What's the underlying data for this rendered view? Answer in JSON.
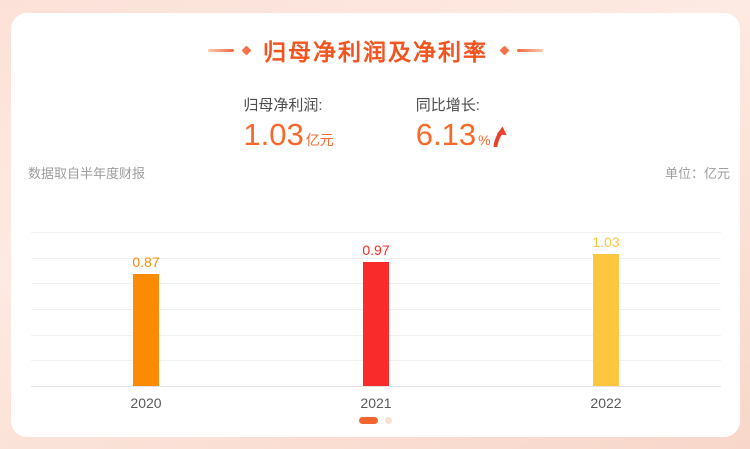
{
  "header": {
    "title": "归母净利润及净利率"
  },
  "stats": {
    "net_profit": {
      "label": "归母净利润:",
      "value": "1.03",
      "unit": "亿元"
    },
    "yoy_growth": {
      "label": "同比增长:",
      "value": "6.13",
      "unit": "%",
      "trend": "up"
    }
  },
  "notes": {
    "source": "数据取自半年度财报",
    "unit": "单位：亿元"
  },
  "chart_data": {
    "type": "bar",
    "title": "归母净利润及净利率",
    "categories": [
      "2020",
      "2021",
      "2022"
    ],
    "values": [
      0.87,
      0.97,
      1.03
    ],
    "value_labels": [
      "0.87",
      "0.97",
      "1.03"
    ],
    "bar_colors": [
      "#fb8b05",
      "#f92b2b",
      "#fcc63e"
    ],
    "xlabel": "",
    "ylabel": "",
    "unit": "亿元",
    "ylim": [
      0,
      1.2
    ],
    "gridline_step": 0.2,
    "grid": true,
    "legend": false
  },
  "pagination": {
    "count": 2,
    "active_index": 0
  },
  "colors": {
    "title_accent": "#f2541f",
    "stat_value": "#f9682a",
    "arrow_red": "#e8432f",
    "pagination_active": "#f1652f",
    "pagination_inactive": "#fbdfd5",
    "background_top": "#fce1d8",
    "background_bottom": "#f8d7ca",
    "card_background": "#ffffff"
  }
}
